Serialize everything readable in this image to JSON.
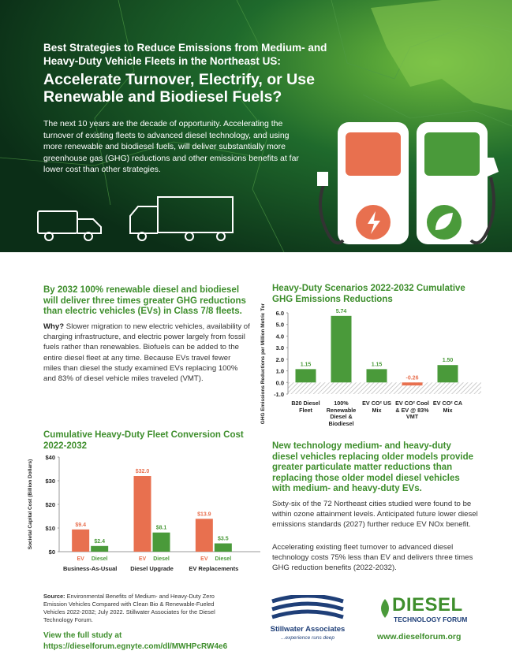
{
  "header": {
    "subtitle": "Best Strategies to Reduce Emissions from Medium- and Heavy-Duty Vehicle Fleets in the Northeast US:",
    "title": "Accelerate Turnover, Electrify, or Use Renewable and Biodiesel Fuels?",
    "intro": "The next 10 years are the decade of opportunity. Accelerating the turnover of existing fleets to advanced diesel technology, and using more renewable and biodiesel fuels, will deliver substantially more greenhouse gas (GHG) reductions and other emissions benefits at far lower cost than other strategies."
  },
  "left_section": {
    "headline": "By 2032 100% renewable diesel and biodiesel will deliver three times greater GHG reductions than electric vehicles (EVs) in Class 7/8 fleets.",
    "lead": "Why?",
    "body": "Slower migration to new electric vehicles, availability of charging infrastructure, and electric power largely from fossil fuels rather than renewables. Biofuels can be added to the entire diesel fleet at any time. Because EVs travel fewer miles than diesel the study examined EVs replacing 100% and 83% of diesel vehicle miles traveled (VMT)."
  },
  "chart_data": [
    {
      "type": "bar",
      "title": "Heavy-Duty Scenarios 2022-2032 Cumulative GHG Emissions Reductions",
      "y_label": "GHG Emissions Reductions per Million Metric Tons (MMT)",
      "categories": [
        "B20 Diesel Fleet",
        "100% Renewable Diesel & Biodiesel",
        "EV CO² US Mix",
        "EV CO² Cool & EV @ 83% VMT",
        "EV CO² CA Mix"
      ],
      "values": [
        1.15,
        5.74,
        1.15,
        -0.26,
        1.5
      ],
      "value_labels": [
        "1.15",
        "5.74",
        "1.15",
        "-0.26",
        "1.50"
      ],
      "colors": [
        "#4a9a3a",
        "#4a9a3a",
        "#4a9a3a",
        "#e8704f",
        "#4a9a3a"
      ],
      "ylim": [
        -1,
        6
      ],
      "yticks": [
        {
          "value": 6,
          "label": "6.0"
        },
        {
          "value": 5,
          "label": "5.0"
        },
        {
          "value": 4,
          "label": "4.0"
        },
        {
          "value": 3,
          "label": "3.0"
        },
        {
          "value": 2,
          "label": "2.0"
        },
        {
          "value": 1,
          "label": "1.0"
        },
        {
          "value": 0,
          "label": "0.0"
        },
        {
          "value": -1,
          "label": "-1.0"
        }
      ]
    },
    {
      "type": "grouped_bar",
      "title": "Cumulative Heavy-Duty Fleet Conversion Cost 2022-2032",
      "y_label": "Societal Capital Cost (Billion Dollars)",
      "categories": [
        "Business-As-Usual",
        "Diesel Upgrade",
        "EV Replacements"
      ],
      "series": [
        {
          "name": "EV",
          "color": "#e8704f",
          "values": [
            9.4,
            32.0,
            13.9
          ],
          "value_labels": [
            "$9.4",
            "$32.0",
            "$13.9"
          ]
        },
        {
          "name": "Diesel",
          "color": "#4a9a3a",
          "values": [
            2.4,
            8.1,
            3.5
          ],
          "value_labels": [
            "$2.4",
            "$8.1",
            "$3.5"
          ]
        }
      ],
      "ylim": [
        0,
        40
      ],
      "yticks": [
        {
          "value": 0,
          "label": "$0"
        },
        {
          "value": 10,
          "label": "$10"
        },
        {
          "value": 20,
          "label": "$20"
        },
        {
          "value": 30,
          "label": "$30"
        },
        {
          "value": 40,
          "label": "$40"
        }
      ]
    }
  ],
  "right_section": {
    "headline": "New technology medium- and heavy-duty diesel vehicles replacing older models provide greater particulate matter reductions than replacing those older model diesel vehicles with medium- and heavy-duty EVs.",
    "paragraphs": [
      "Sixty-six of the 72 Northeast cities studied were found to be within ozone attainment levels. Anticipated future lower diesel emissions standards (2027) further reduce EV NOx benefit.",
      "Accelerating existing fleet turnover to advanced diesel technology costs 75% less than EV and delivers three times GHG reduction benefits (2022-2032)."
    ]
  },
  "footer": {
    "source_label": "Source:",
    "source_text": "Environmental Benefits of Medium- and Heavy-Duty Zero Emission Vehicles Compared with Clean Bio & Renewable-Fueled Vehicles 2022-2032; July 2022. Stillwater Associates for the Diesel Technology Forum.",
    "study_label": "View the full study at",
    "study_url": "https://dieselforum.egnyte.com/dl/MWHPcRW4e6",
    "stillwater_name": "Stillwater Associates",
    "stillwater_tagline": "...experience runs deep",
    "dtf_name": "DIESEL",
    "dtf_sub": "TECHNOLOGY FORUM",
    "dtf_url": "www.dieselforum.org"
  }
}
